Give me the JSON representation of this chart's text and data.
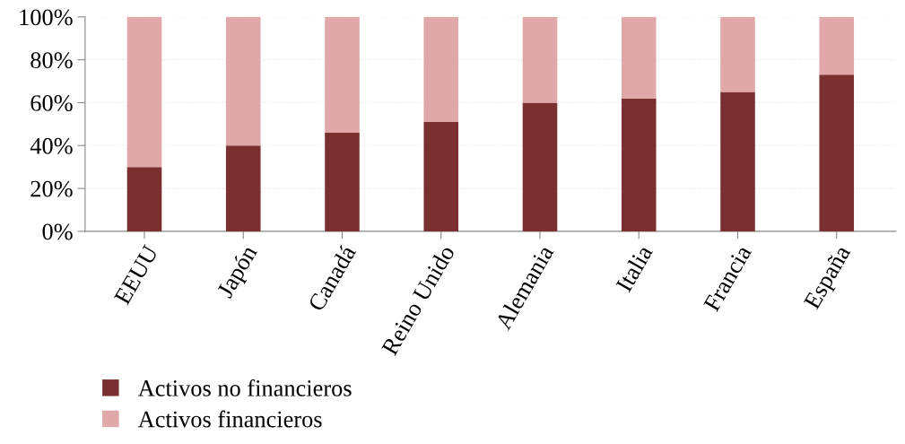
{
  "chart_data": {
    "type": "bar",
    "stacked": true,
    "categories": [
      "EEUU",
      "Japón",
      "Canadá",
      "Reino Unido",
      "Alemania",
      "Italia",
      "Francia",
      "España"
    ],
    "series": [
      {
        "name": "Activos no financieros",
        "color": "#7a3030",
        "values": [
          30,
          40,
          46,
          51,
          60,
          62,
          65,
          73
        ]
      },
      {
        "name": "Activos financieros",
        "color": "#e0a8a8",
        "values": [
          70,
          60,
          54,
          49,
          40,
          38,
          35,
          27
        ]
      }
    ],
    "ylim": [
      0,
      100
    ],
    "yticks": [
      {
        "value": 0,
        "label": "0%"
      },
      {
        "value": 20,
        "label": "20%"
      },
      {
        "value": 40,
        "label": "40%"
      },
      {
        "value": 60,
        "label": "60%"
      },
      {
        "value": 80,
        "label": "80%"
      },
      {
        "value": 100,
        "label": "100%"
      }
    ],
    "grid": "y",
    "legend": "bottom left"
  }
}
